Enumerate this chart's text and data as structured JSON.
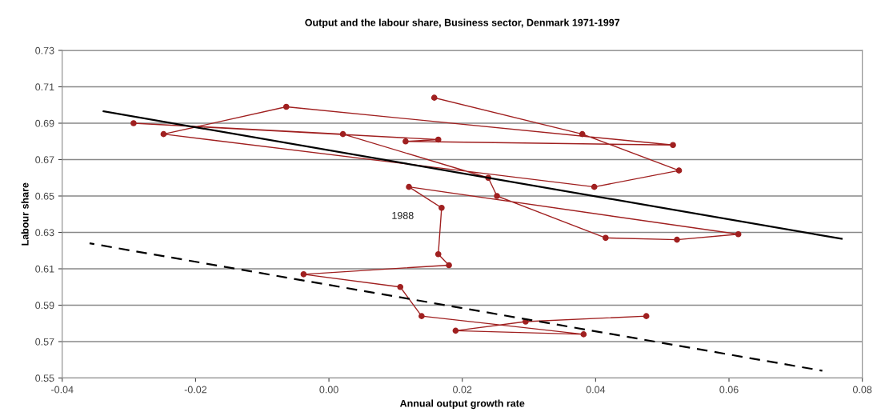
{
  "chart_data": {
    "type": "line",
    "title": "Output and the labour share, Business sector, Denmark 1971-1997",
    "xlabel": "Annual output growth rate",
    "ylabel": "Labour share",
    "xlim": [
      -0.04,
      0.08
    ],
    "ylim": [
      0.55,
      0.73
    ],
    "xticks": [
      {
        "value": -0.04,
        "label": "-0.04"
      },
      {
        "value": -0.02,
        "label": "-0.02"
      },
      {
        "value": 0,
        "label": "0.00"
      },
      {
        "value": 0.02,
        "label": "0.02"
      },
      {
        "value": 0.04,
        "label": "0.04"
      },
      {
        "value": 0.06,
        "label": "0.06"
      },
      {
        "value": 0.08,
        "label": "0.08"
      }
    ],
    "yticks": [
      0.55,
      0.57,
      0.59,
      0.61,
      0.63,
      0.65,
      0.67,
      0.69,
      0.71,
      0.73
    ],
    "grid": "y",
    "legend": false,
    "series": [
      {
        "color": "#a02020",
        "marker": "circle",
        "line_style": "solid",
        "x": [
          0.0158,
          0.038,
          0.0525,
          0.0398,
          -0.0248,
          -0.0064,
          0.0516,
          0.0115,
          0.0164,
          -0.0293,
          0.0021,
          0.0239,
          0.0252,
          0.0415,
          0.0522,
          0.0614,
          0.012,
          0.0169,
          0.0164,
          0.018,
          -0.0038,
          0.0107,
          0.0139,
          0.0382,
          0.019,
          0.0295,
          0.0476
        ],
        "values": [
          0.704,
          0.684,
          0.664,
          0.655,
          0.684,
          0.699,
          0.678,
          0.68,
          0.681,
          0.69,
          0.684,
          0.66,
          0.65,
          0.627,
          0.626,
          0.629,
          0.655,
          0.6435,
          0.618,
          0.612,
          0.607,
          0.6,
          0.584,
          0.574,
          0.576,
          0.581,
          0.584
        ]
      },
      {
        "color": "#000000",
        "marker": "none",
        "line_style": "solid",
        "x": [
          -0.0338,
          0.0769
        ],
        "values": [
          0.6965,
          0.6265
        ]
      },
      {
        "color": "#000000",
        "marker": "none",
        "line_style": "dashed",
        "x": [
          -0.0359,
          0.074
        ],
        "values": [
          0.624,
          0.554
        ]
      }
    ],
    "annotations": [
      {
        "text": "1988",
        "x": 0.0169,
        "y": 0.6435
      }
    ]
  }
}
